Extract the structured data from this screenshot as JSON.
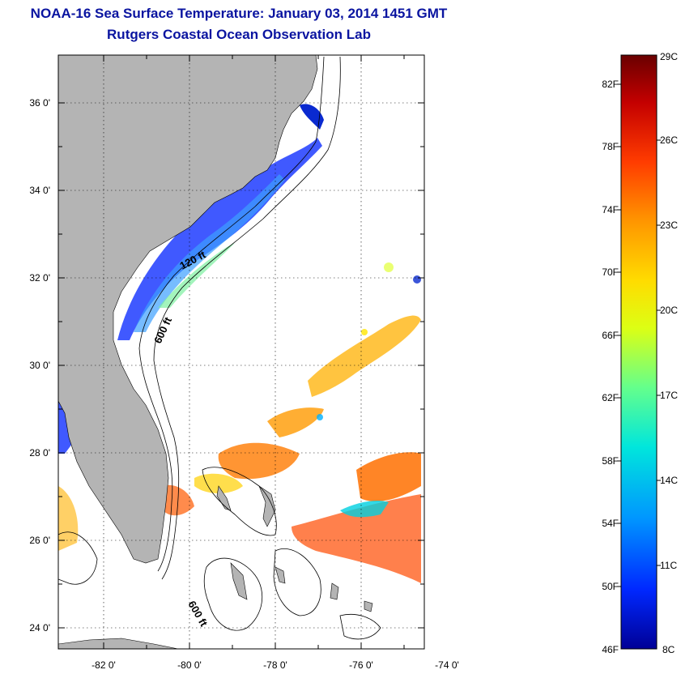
{
  "title": {
    "line1": "NOAA-16 Sea Surface Temperature:  January 03, 2014 1451 GMT",
    "line2": "Rutgers Coastal Ocean Observation Lab"
  },
  "map": {
    "lat_labels": [
      "36 0'",
      "34 0'",
      "32 0'",
      "30 0'",
      "28 0'",
      "26 0'",
      "24 0'"
    ],
    "lon_labels": [
      "-82 0'",
      "-80 0'",
      "-78 0'",
      "-76 0'",
      "-74 0'"
    ],
    "contours": {
      "c120": "120 ft",
      "c600a": "600 ft",
      "c600b": "600 ft"
    },
    "land_color": "#b4b4b4"
  },
  "colorbar": {
    "f_labels": [
      "82F",
      "78F",
      "74F",
      "70F",
      "66F",
      "62F",
      "58F",
      "54F",
      "50F",
      "46F"
    ],
    "c_labels": [
      "29C",
      "26C",
      "23C",
      "20C",
      "17C",
      "14C",
      "11C",
      "8C"
    ],
    "colors": [
      "#6a0000",
      "#c40000",
      "#ff3c00",
      "#ff9600",
      "#ffdc00",
      "#dcff14",
      "#64ff8c",
      "#00e6dc",
      "#0096ff",
      "#0028ff",
      "#000096"
    ]
  }
}
